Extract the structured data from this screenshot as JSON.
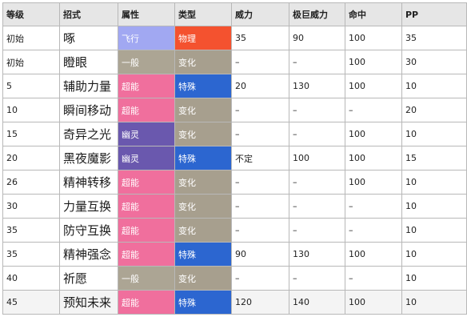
{
  "headers": [
    "等级",
    "招式",
    "属性",
    "类型",
    "威力",
    "极巨威力",
    "命中",
    "PP"
  ],
  "colors": {
    "飞行": "#a1a8f2",
    "一般": "#aca594",
    "超能": "#f06f9d",
    "幽灵": "#6a58ae",
    "物理": "#f4522f",
    "特殊": "#2c66d0",
    "变化": "#a79f8e"
  },
  "rows": [
    {
      "level": "初始",
      "move": "啄",
      "type": "飞行",
      "category": "物理",
      "power": "35",
      "max_power": "90",
      "accuracy": "100",
      "pp": "35"
    },
    {
      "level": "初始",
      "move": "瞪眼",
      "type": "一般",
      "category": "变化",
      "power": "–",
      "max_power": "–",
      "accuracy": "100",
      "pp": "30"
    },
    {
      "level": "5",
      "move": "辅助力量",
      "type": "超能",
      "category": "特殊",
      "power": "20",
      "max_power": "130",
      "accuracy": "100",
      "pp": "10"
    },
    {
      "level": "10",
      "move": "瞬间移动",
      "type": "超能",
      "category": "变化",
      "power": "–",
      "max_power": "–",
      "accuracy": "–",
      "pp": "20"
    },
    {
      "level": "15",
      "move": "奇异之光",
      "type": "幽灵",
      "category": "变化",
      "power": "–",
      "max_power": "–",
      "accuracy": "100",
      "pp": "10"
    },
    {
      "level": "20",
      "move": "黑夜魔影",
      "type": "幽灵",
      "category": "特殊",
      "power": "不定",
      "max_power": "100",
      "accuracy": "100",
      "pp": "15"
    },
    {
      "level": "26",
      "move": "精神转移",
      "type": "超能",
      "category": "变化",
      "power": "–",
      "max_power": "–",
      "accuracy": "100",
      "pp": "10"
    },
    {
      "level": "30",
      "move": "力量互换",
      "type": "超能",
      "category": "变化",
      "power": "–",
      "max_power": "–",
      "accuracy": "–",
      "pp": "10"
    },
    {
      "level": "35",
      "move": "防守互换",
      "type": "超能",
      "category": "变化",
      "power": "–",
      "max_power": "–",
      "accuracy": "–",
      "pp": "10"
    },
    {
      "level": "35",
      "move": "精神强念",
      "type": "超能",
      "category": "特殊",
      "power": "90",
      "max_power": "130",
      "accuracy": "100",
      "pp": "10"
    },
    {
      "level": "40",
      "move": "祈愿",
      "type": "一般",
      "category": "变化",
      "power": "–",
      "max_power": "–",
      "accuracy": "–",
      "pp": "10"
    },
    {
      "level": "45",
      "move": "预知未来",
      "type": "超能",
      "category": "特殊",
      "power": "120",
      "max_power": "140",
      "accuracy": "100",
      "pp": "10"
    }
  ]
}
